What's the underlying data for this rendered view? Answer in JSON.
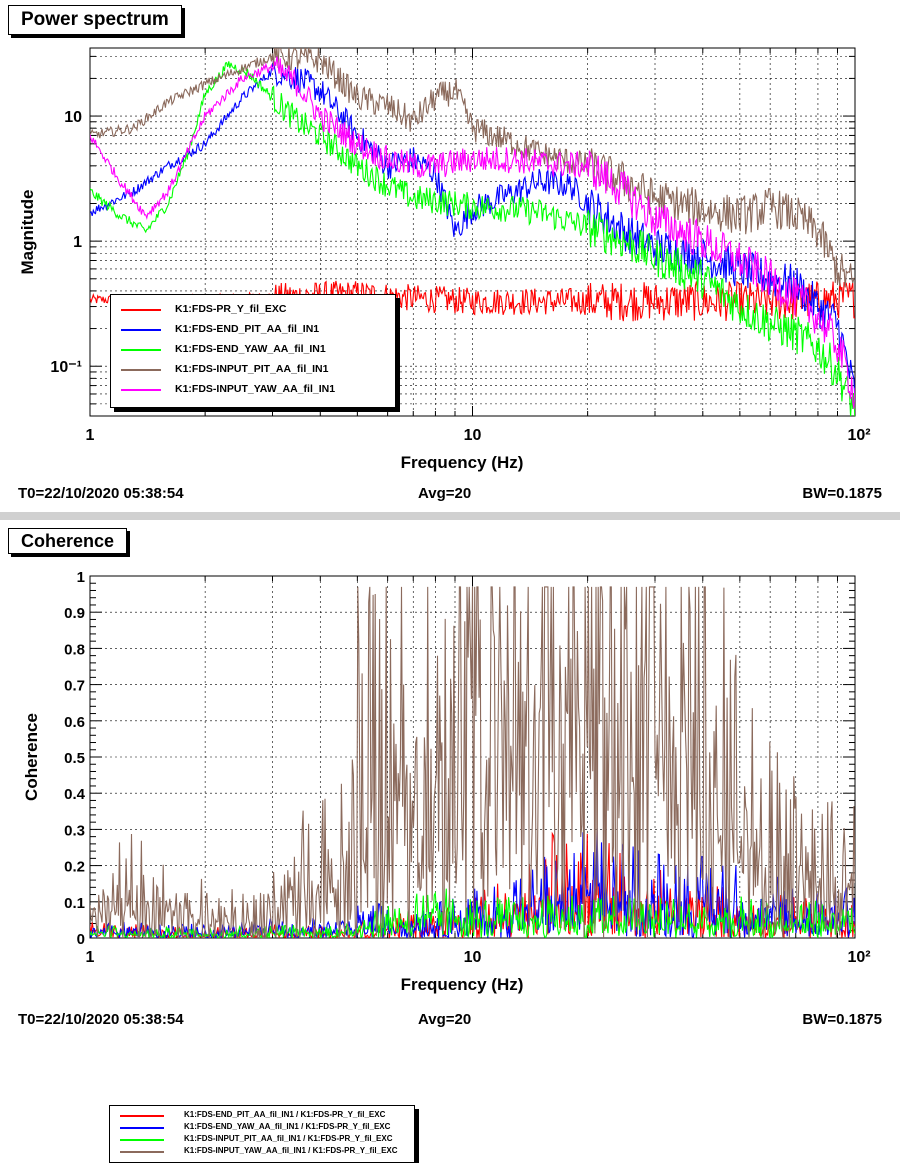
{
  "chart_data": [
    {
      "type": "line",
      "title": "Power spectrum",
      "xlabel": "Frequency (Hz)",
      "ylabel": "Magnitude",
      "xscale": "log",
      "yscale": "log",
      "xlim": [
        1,
        100
      ],
      "ylim": [
        0.04,
        35
      ],
      "x_tick_labels": [
        "1",
        "10",
        "10²"
      ],
      "y_tick_labels": [
        "10⁻¹",
        "1",
        "10"
      ],
      "grid": true,
      "legend_position": "bottom-left",
      "footer": {
        "t0": "T0=22/10/2020 05:38:54",
        "avg": "Avg=20",
        "bw": "BW=0.1875"
      },
      "series": [
        {
          "name": "K1:FDS-PR_Y_fil_EXC",
          "color": "#ff0000",
          "points": [
            [
              1,
              0.34
            ],
            [
              2,
              0.34
            ],
            [
              3,
              0.36
            ],
            [
              5,
              0.38
            ],
            [
              7,
              0.35
            ],
            [
              10,
              0.33
            ],
            [
              20,
              0.33
            ],
            [
              30,
              0.33
            ],
            [
              50,
              0.33
            ],
            [
              70,
              0.33
            ],
            [
              100,
              0.35
            ]
          ]
        },
        {
          "name": "K1:FDS-END_PIT_AA_fil_IN1",
          "color": "#0000ff",
          "points": [
            [
              1,
              1.7
            ],
            [
              1.3,
              2.5
            ],
            [
              1.6,
              4
            ],
            [
              2,
              6
            ],
            [
              2.5,
              14
            ],
            [
              3,
              23
            ],
            [
              3.5,
              20
            ],
            [
              4,
              16
            ],
            [
              5,
              7
            ],
            [
              6,
              4
            ],
            [
              7,
              4.5
            ],
            [
              8,
              3.5
            ],
            [
              9,
              1.2
            ],
            [
              10,
              1.8
            ],
            [
              13,
              2.5
            ],
            [
              15,
              3
            ],
            [
              18,
              2.8
            ],
            [
              20,
              2
            ],
            [
              25,
              1.2
            ],
            [
              30,
              0.9
            ],
            [
              40,
              0.75
            ],
            [
              50,
              0.6
            ],
            [
              60,
              0.5
            ],
            [
              70,
              0.45
            ],
            [
              80,
              0.3
            ],
            [
              90,
              0.22
            ],
            [
              100,
              0.06
            ]
          ]
        },
        {
          "name": "K1:FDS-END_YAW_AA_fil_IN1",
          "color": "#00ff00",
          "points": [
            [
              1,
              2.5
            ],
            [
              1.2,
              1.6
            ],
            [
              1.4,
              1.2
            ],
            [
              1.6,
              2
            ],
            [
              1.8,
              5
            ],
            [
              2,
              15
            ],
            [
              2.3,
              26
            ],
            [
              2.6,
              22
            ],
            [
              3,
              14
            ],
            [
              3.5,
              9
            ],
            [
              4,
              7
            ],
            [
              5,
              4
            ],
            [
              6,
              2.8
            ],
            [
              7,
              2.2
            ],
            [
              8,
              2.1
            ],
            [
              10,
              1.9
            ],
            [
              13,
              1.8
            ],
            [
              15,
              1.7
            ],
            [
              20,
              1.3
            ],
            [
              25,
              1
            ],
            [
              30,
              0.75
            ],
            [
              40,
              0.5
            ],
            [
              50,
              0.3
            ],
            [
              60,
              0.22
            ],
            [
              70,
              0.18
            ],
            [
              80,
              0.14
            ],
            [
              90,
              0.09
            ],
            [
              100,
              0.045
            ]
          ]
        },
        {
          "name": "K1:FDS-INPUT_PIT_AA_fil_IN1",
          "color": "#8b6a5c",
          "points": [
            [
              1,
              7
            ],
            [
              1.3,
              8
            ],
            [
              1.6,
              13
            ],
            [
              2,
              18
            ],
            [
              2.5,
              24
            ],
            [
              3,
              30
            ],
            [
              4,
              28
            ],
            [
              5,
              14
            ],
            [
              6,
              12
            ],
            [
              7,
              9
            ],
            [
              8,
              14
            ],
            [
              9,
              16
            ],
            [
              10,
              8
            ],
            [
              13,
              6
            ],
            [
              15,
              5
            ],
            [
              20,
              4
            ],
            [
              25,
              3
            ],
            [
              30,
              2.2
            ],
            [
              40,
              1.8
            ],
            [
              50,
              1.6
            ],
            [
              55,
              1.7
            ],
            [
              60,
              1.9
            ],
            [
              70,
              1.6
            ],
            [
              80,
              1.2
            ],
            [
              90,
              0.6
            ],
            [
              100,
              0.45
            ]
          ]
        },
        {
          "name": "K1:FDS-INPUT_YAW_AA_fil_IN1",
          "color": "#ff00ff",
          "points": [
            [
              1,
              7
            ],
            [
              1.2,
              3
            ],
            [
              1.4,
              1.6
            ],
            [
              1.6,
              2.5
            ],
            [
              2,
              10
            ],
            [
              2.5,
              20
            ],
            [
              3,
              25
            ],
            [
              3.5,
              18
            ],
            [
              4,
              10
            ],
            [
              5,
              6
            ],
            [
              6,
              4.5
            ],
            [
              7,
              4
            ],
            [
              8,
              4
            ],
            [
              10,
              4.5
            ],
            [
              13,
              4.5
            ],
            [
              15,
              4.2
            ],
            [
              20,
              4
            ],
            [
              25,
              2.5
            ],
            [
              30,
              1.5
            ],
            [
              40,
              1
            ],
            [
              50,
              0.7
            ],
            [
              60,
              0.5
            ],
            [
              70,
              0.35
            ],
            [
              80,
              0.25
            ],
            [
              90,
              0.15
            ],
            [
              100,
              0.06
            ]
          ]
        }
      ]
    },
    {
      "type": "line",
      "title": "Coherence",
      "xlabel": "Frequency (Hz)",
      "ylabel": "Coherence",
      "xscale": "log",
      "xlim": [
        1,
        100
      ],
      "ylim": [
        0,
        1
      ],
      "x_tick_labels": [
        "1",
        "10",
        "10²"
      ],
      "y_tick_labels": [
        "0",
        "0.1",
        "0.2",
        "0.3",
        "0.4",
        "0.5",
        "0.6",
        "0.7",
        "0.8",
        "0.9",
        "1"
      ],
      "grid": true,
      "legend_position": "top-left",
      "footer": {
        "t0": "T0=22/10/2020 05:38:54",
        "avg": "Avg=20",
        "bw": "BW=0.1875"
      },
      "series": [
        {
          "name": "K1:FDS-END_PIT_AA_fil_IN1 / K1:FDS-PR_Y_fil_EXC",
          "color": "#ff0000",
          "points": [
            [
              1,
              0.05
            ],
            [
              2,
              0.03
            ],
            [
              3,
              0.04
            ],
            [
              5,
              0.03
            ],
            [
              8,
              0.04
            ],
            [
              10,
              0.06
            ],
            [
              13,
              0.1
            ],
            [
              15,
              0.15
            ],
            [
              20,
              0.18
            ],
            [
              25,
              0.12
            ],
            [
              30,
              0.1
            ],
            [
              50,
              0.07
            ],
            [
              70,
              0.06
            ],
            [
              100,
              0.05
            ]
          ]
        },
        {
          "name": "K1:FDS-END_YAW_AA_fil_IN1 / K1:FDS-PR_Y_fil_EXC",
          "color": "#0000ff",
          "points": [
            [
              1,
              0.05
            ],
            [
              2,
              0.04
            ],
            [
              3,
              0.06
            ],
            [
              5,
              0.05
            ],
            [
              8,
              0.05
            ],
            [
              10,
              0.07
            ],
            [
              13,
              0.1
            ],
            [
              15,
              0.12
            ],
            [
              20,
              0.17
            ],
            [
              25,
              0.14
            ],
            [
              30,
              0.13
            ],
            [
              50,
              0.11
            ],
            [
              70,
              0.09
            ],
            [
              100,
              0.08
            ]
          ]
        },
        {
          "name": "K1:FDS-INPUT_PIT_AA_fil_IN1 / K1:FDS-PR_Y_fil_EXC",
          "color": "#00ff00",
          "points": [
            [
              1,
              0.04
            ],
            [
              2,
              0.03
            ],
            [
              3,
              0.04
            ],
            [
              5,
              0.04
            ],
            [
              8,
              0.08
            ],
            [
              10,
              0.06
            ],
            [
              13,
              0.06
            ],
            [
              15,
              0.06
            ],
            [
              20,
              0.07
            ],
            [
              25,
              0.07
            ],
            [
              30,
              0.06
            ],
            [
              50,
              0.06
            ],
            [
              70,
              0.06
            ],
            [
              100,
              0.05
            ]
          ]
        },
        {
          "name": "K1:FDS-INPUT_YAW_AA_fil_IN1 / K1:FDS-PR_Y_fil_EXC",
          "color": "#8b6a5c",
          "points": [
            [
              1,
              0.2
            ],
            [
              1.3,
              0.3
            ],
            [
              1.6,
              0.15
            ],
            [
              2,
              0.12
            ],
            [
              2.5,
              0.1
            ],
            [
              3,
              0.15
            ],
            [
              3.5,
              0.45
            ],
            [
              4,
              0.35
            ],
            [
              5,
              0.55
            ],
            [
              6,
              0.6
            ],
            [
              7,
              0.62
            ],
            [
              8,
              0.55
            ],
            [
              10,
              0.7
            ],
            [
              13,
              0.78
            ],
            [
              15,
              0.82
            ],
            [
              18,
              0.85
            ],
            [
              20,
              0.84
            ],
            [
              25,
              0.86
            ],
            [
              30,
              0.82
            ],
            [
              40,
              0.6
            ],
            [
              50,
              0.4
            ],
            [
              60,
              0.3
            ],
            [
              70,
              0.25
            ],
            [
              80,
              0.2
            ],
            [
              100,
              0.2
            ]
          ]
        }
      ]
    }
  ]
}
